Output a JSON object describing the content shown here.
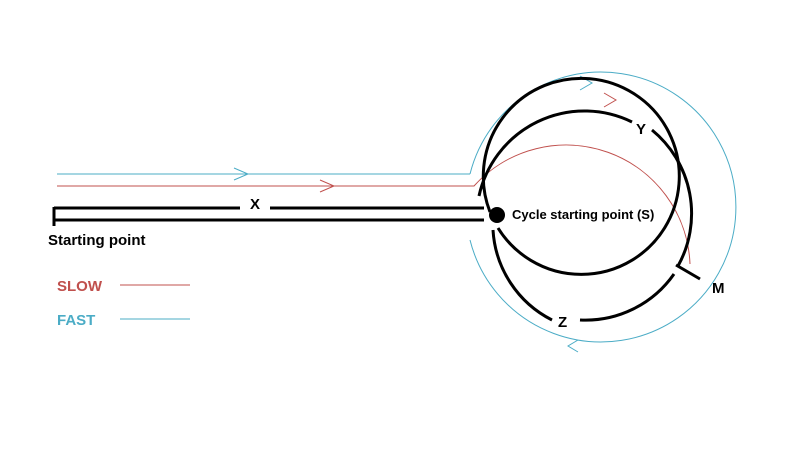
{
  "labels": {
    "start": "Starting point",
    "x": "X",
    "y": "Y",
    "z": "Z",
    "m": "M",
    "cycle_start": "Cycle starting point (S)"
  },
  "legend": {
    "slow": "SLOW",
    "fast": "FAST"
  },
  "colors": {
    "slow": "#c0504d",
    "fast": "#4bacc6",
    "track": "#000000"
  }
}
